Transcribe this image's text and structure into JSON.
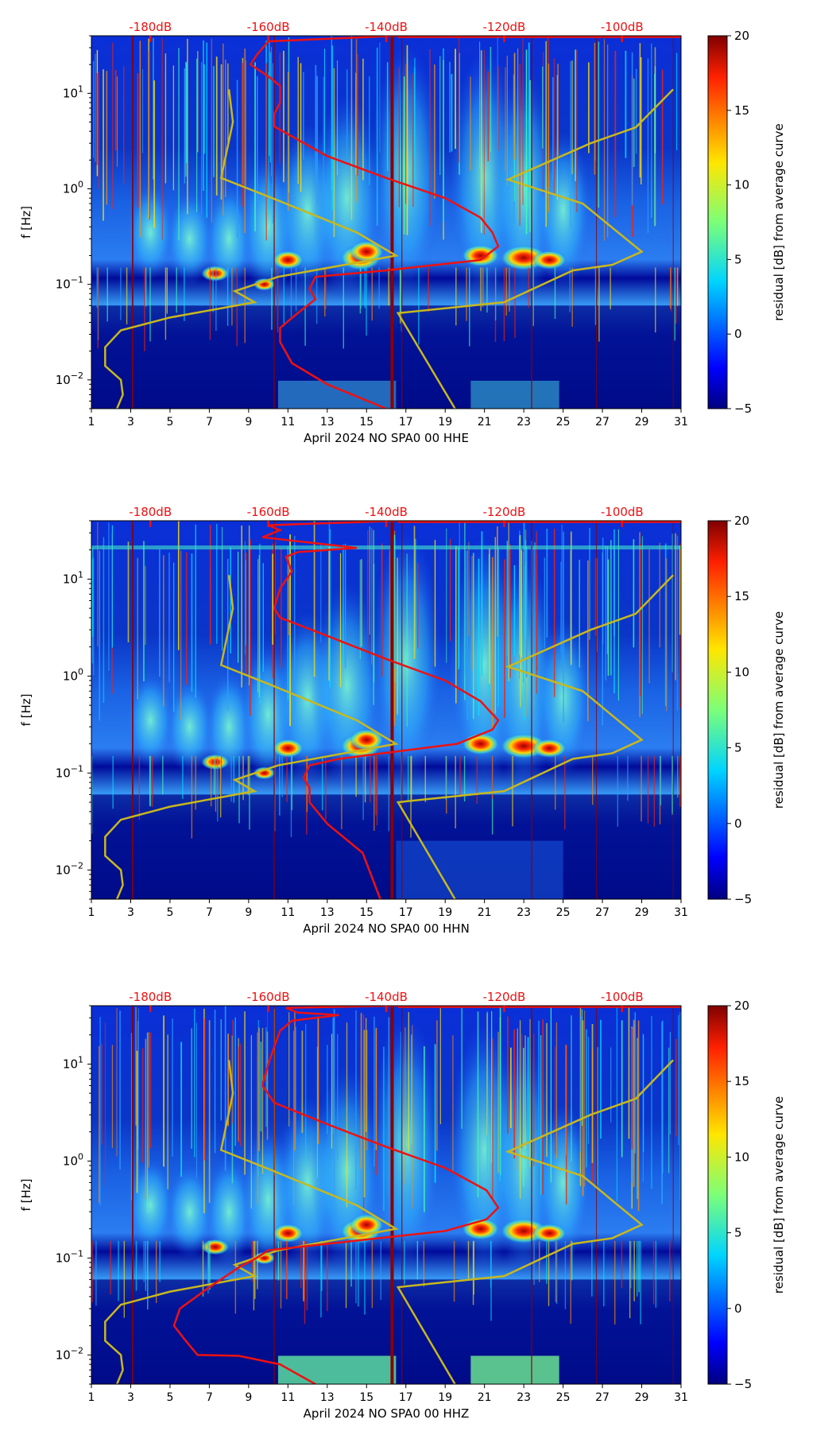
{
  "chart_data": [
    {
      "type": "heatmap",
      "channel": "HHE",
      "xlabel": "April 2024 NO SPA0 00 HHE",
      "ylabel": "f [Hz]",
      "xlim": [
        1,
        31
      ],
      "ylim": [
        0.005,
        40
      ],
      "yscale": "log",
      "x_ticks": [
        "1",
        "3",
        "5",
        "7",
        "9",
        "11",
        "13",
        "15",
        "17",
        "19",
        "21",
        "23",
        "25",
        "27",
        "29",
        "31"
      ],
      "y_ticks": [
        {
          "value": 0.01,
          "base": "10",
          "exp": "−2"
        },
        {
          "value": 0.1,
          "base": "10",
          "exp": "−1"
        },
        {
          "value": 1,
          "base": "10",
          "exp": "0"
        },
        {
          "value": 10,
          "base": "10",
          "exp": "1"
        }
      ],
      "db_axis_ticks": [
        "-180dB",
        "-160dB",
        "-140dB",
        "-120dB",
        "-100dB"
      ],
      "db_axis_range": [
        -190,
        -90
      ],
      "colorbar": {
        "label": "residual [dB] from average curve",
        "range": [
          -5,
          20
        ],
        "ticks": [
          "−5",
          "0",
          "5",
          "10",
          "15",
          "20"
        ]
      },
      "average_curve_db": [
        [
          -138,
          40
        ],
        [
          -160,
          35
        ],
        [
          -162,
          25
        ],
        [
          -163,
          20
        ],
        [
          -160,
          15
        ],
        [
          -158,
          12
        ],
        [
          -158,
          8
        ],
        [
          -159,
          6
        ],
        [
          -159,
          4.5
        ],
        [
          -150,
          2.2
        ],
        [
          -140,
          1.3
        ],
        [
          -130,
          0.8
        ],
        [
          -124,
          0.5
        ],
        [
          -122,
          0.35
        ],
        [
          -121,
          0.25
        ],
        [
          -124,
          0.18
        ],
        [
          -140,
          0.14
        ],
        [
          -152,
          0.12
        ],
        [
          -153,
          0.09
        ],
        [
          -152,
          0.07
        ],
        [
          -155,
          0.05
        ],
        [
          -158,
          0.035
        ],
        [
          -158,
          0.025
        ],
        [
          -156,
          0.015
        ],
        [
          -150,
          0.009
        ],
        [
          -140,
          0.005
        ]
      ],
      "noise_model_x_day": [
        [
          8.0,
          11
        ],
        [
          8.2,
          5
        ],
        [
          7.6,
          1.3
        ],
        [
          10.2,
          0.8
        ],
        [
          14.5,
          0.35
        ],
        [
          16.5,
          0.2
        ],
        [
          10.5,
          0.12
        ],
        [
          8.3,
          0.085
        ],
        [
          9.3,
          0.065
        ],
        [
          5,
          0.045
        ],
        [
          2.5,
          0.033
        ],
        [
          1.7,
          0.022
        ],
        [
          1.7,
          0.014
        ],
        [
          2.5,
          0.01
        ],
        [
          2.6,
          0.007
        ],
        [
          2.3,
          0.005
        ]
      ],
      "noise_model_x_day_high": [
        [
          30.6,
          11
        ],
        [
          28.7,
          4.4
        ],
        [
          26.4,
          3.0
        ],
        [
          22.2,
          1.25
        ],
        [
          26.0,
          0.7
        ],
        [
          29.0,
          0.22
        ],
        [
          27.5,
          0.16
        ],
        [
          25.5,
          0.14
        ],
        [
          22.0,
          0.065
        ],
        [
          16.6,
          0.05
        ],
        [
          19.5,
          0.005
        ]
      ]
    },
    {
      "type": "heatmap",
      "channel": "HHN",
      "xlabel": "April 2024 NO SPA0 00 HHN",
      "ylabel": "f [Hz]",
      "xlim": [
        1,
        31
      ],
      "ylim": [
        0.005,
        40
      ],
      "yscale": "log",
      "x_ticks": [
        "1",
        "3",
        "5",
        "7",
        "9",
        "11",
        "13",
        "15",
        "17",
        "19",
        "21",
        "23",
        "25",
        "27",
        "29",
        "31"
      ],
      "y_ticks": [
        {
          "value": 0.01,
          "base": "10",
          "exp": "−2"
        },
        {
          "value": 0.1,
          "base": "10",
          "exp": "−1"
        },
        {
          "value": 1,
          "base": "10",
          "exp": "0"
        },
        {
          "value": 10,
          "base": "10",
          "exp": "1"
        }
      ],
      "db_axis_ticks": [
        "-180dB",
        "-160dB",
        "-140dB",
        "-120dB",
        "-100dB"
      ],
      "db_axis_range": [
        -190,
        -90
      ],
      "colorbar": {
        "label": "residual [dB] from average curve",
        "range": [
          -5,
          20
        ],
        "ticks": [
          "−5",
          "0",
          "5",
          "10",
          "15",
          "20"
        ]
      },
      "average_curve_db": [
        [
          -138,
          40
        ],
        [
          -160,
          36
        ],
        [
          -158,
          32
        ],
        [
          -161,
          27
        ],
        [
          -145,
          21
        ],
        [
          -155,
          19
        ],
        [
          -157,
          17
        ],
        [
          -156,
          12
        ],
        [
          -158,
          8
        ],
        [
          -159,
          5
        ],
        [
          -158,
          4
        ],
        [
          -150,
          2.6
        ],
        [
          -140,
          1.5
        ],
        [
          -130,
          0.9
        ],
        [
          -124,
          0.55
        ],
        [
          -121,
          0.35
        ],
        [
          -122,
          0.28
        ],
        [
          -128,
          0.2
        ],
        [
          -148,
          0.14
        ],
        [
          -153,
          0.12
        ],
        [
          -154,
          0.09
        ],
        [
          -153,
          0.07
        ],
        [
          -153,
          0.05
        ],
        [
          -150,
          0.03
        ],
        [
          -144,
          0.015
        ],
        [
          -141,
          0.005
        ]
      ],
      "noise_model_x_day": [
        [
          8.0,
          11
        ],
        [
          8.2,
          5
        ],
        [
          7.6,
          1.3
        ],
        [
          10.2,
          0.8
        ],
        [
          14.5,
          0.35
        ],
        [
          16.5,
          0.2
        ],
        [
          10.5,
          0.12
        ],
        [
          8.3,
          0.085
        ],
        [
          9.3,
          0.065
        ],
        [
          5,
          0.045
        ],
        [
          2.5,
          0.033
        ],
        [
          1.7,
          0.022
        ],
        [
          1.7,
          0.014
        ],
        [
          2.5,
          0.01
        ],
        [
          2.6,
          0.007
        ],
        [
          2.3,
          0.005
        ]
      ],
      "noise_model_x_day_high": [
        [
          30.6,
          11
        ],
        [
          28.7,
          4.4
        ],
        [
          26.4,
          3.0
        ],
        [
          22.2,
          1.25
        ],
        [
          26.0,
          0.7
        ],
        [
          29.0,
          0.22
        ],
        [
          27.5,
          0.16
        ],
        [
          25.5,
          0.14
        ],
        [
          22.0,
          0.065
        ],
        [
          16.6,
          0.05
        ],
        [
          19.5,
          0.005
        ]
      ]
    },
    {
      "type": "heatmap",
      "channel": "HHZ",
      "xlabel": "April 2024 NO SPA0 00 HHZ",
      "ylabel": "f [Hz]",
      "xlim": [
        1,
        31
      ],
      "ylim": [
        0.005,
        40
      ],
      "yscale": "log",
      "x_ticks": [
        "1",
        "3",
        "5",
        "7",
        "9",
        "11",
        "13",
        "15",
        "17",
        "19",
        "21",
        "23",
        "25",
        "27",
        "29",
        "31"
      ],
      "y_ticks": [
        {
          "value": 0.01,
          "base": "10",
          "exp": "−2"
        },
        {
          "value": 0.1,
          "base": "10",
          "exp": "−1"
        },
        {
          "value": 1,
          "base": "10",
          "exp": "0"
        },
        {
          "value": 10,
          "base": "10",
          "exp": "1"
        }
      ],
      "db_axis_ticks": [
        "-180dB",
        "-160dB",
        "-140dB",
        "-120dB",
        "-100dB"
      ],
      "db_axis_range": [
        -190,
        -90
      ],
      "colorbar": {
        "label": "residual [dB] from average curve",
        "range": [
          -5,
          20
        ],
        "ticks": [
          "−5",
          "0",
          "5",
          "10",
          "15",
          "20"
        ]
      },
      "average_curve_db": [
        [
          -138,
          40
        ],
        [
          -157,
          38
        ],
        [
          -155,
          34
        ],
        [
          -148,
          32
        ],
        [
          -156,
          28
        ],
        [
          -158,
          22
        ],
        [
          -159,
          15
        ],
        [
          -160,
          10
        ],
        [
          -161,
          6
        ],
        [
          -159,
          4
        ],
        [
          -150,
          2.4
        ],
        [
          -140,
          1.4
        ],
        [
          -130,
          0.85
        ],
        [
          -123,
          0.5
        ],
        [
          -121,
          0.33
        ],
        [
          -123,
          0.25
        ],
        [
          -130,
          0.19
        ],
        [
          -150,
          0.14
        ],
        [
          -160,
          0.12
        ],
        [
          -162,
          0.1
        ],
        [
          -165,
          0.08
        ],
        [
          -170,
          0.05
        ],
        [
          -175,
          0.03
        ],
        [
          -176,
          0.02
        ],
        [
          -174,
          0.014
        ],
        [
          -172,
          0.01
        ],
        [
          -165,
          0.0098
        ],
        [
          -158,
          0.008
        ],
        [
          -152,
          0.005
        ]
      ],
      "noise_model_x_day": [
        [
          8.0,
          11
        ],
        [
          8.2,
          5
        ],
        [
          7.6,
          1.3
        ],
        [
          10.2,
          0.8
        ],
        [
          14.5,
          0.35
        ],
        [
          16.5,
          0.2
        ],
        [
          10.5,
          0.12
        ],
        [
          8.3,
          0.085
        ],
        [
          9.3,
          0.065
        ],
        [
          5,
          0.045
        ],
        [
          2.5,
          0.033
        ],
        [
          1.7,
          0.022
        ],
        [
          1.7,
          0.014
        ],
        [
          2.5,
          0.01
        ],
        [
          2.6,
          0.007
        ],
        [
          2.3,
          0.005
        ]
      ],
      "noise_model_x_day_high": [
        [
          30.6,
          11
        ],
        [
          28.7,
          4.4
        ],
        [
          26.4,
          3.0
        ],
        [
          22.2,
          1.25
        ],
        [
          26.0,
          0.7
        ],
        [
          29.0,
          0.22
        ],
        [
          27.5,
          0.16
        ],
        [
          25.5,
          0.14
        ],
        [
          22.0,
          0.065
        ],
        [
          16.6,
          0.05
        ],
        [
          19.5,
          0.005
        ]
      ]
    }
  ],
  "colors": {
    "average_curve": "#ee1111",
    "noise_model": "#c8b81e",
    "db_labels": "#ee1111",
    "marker_lines": "#8b0000"
  }
}
